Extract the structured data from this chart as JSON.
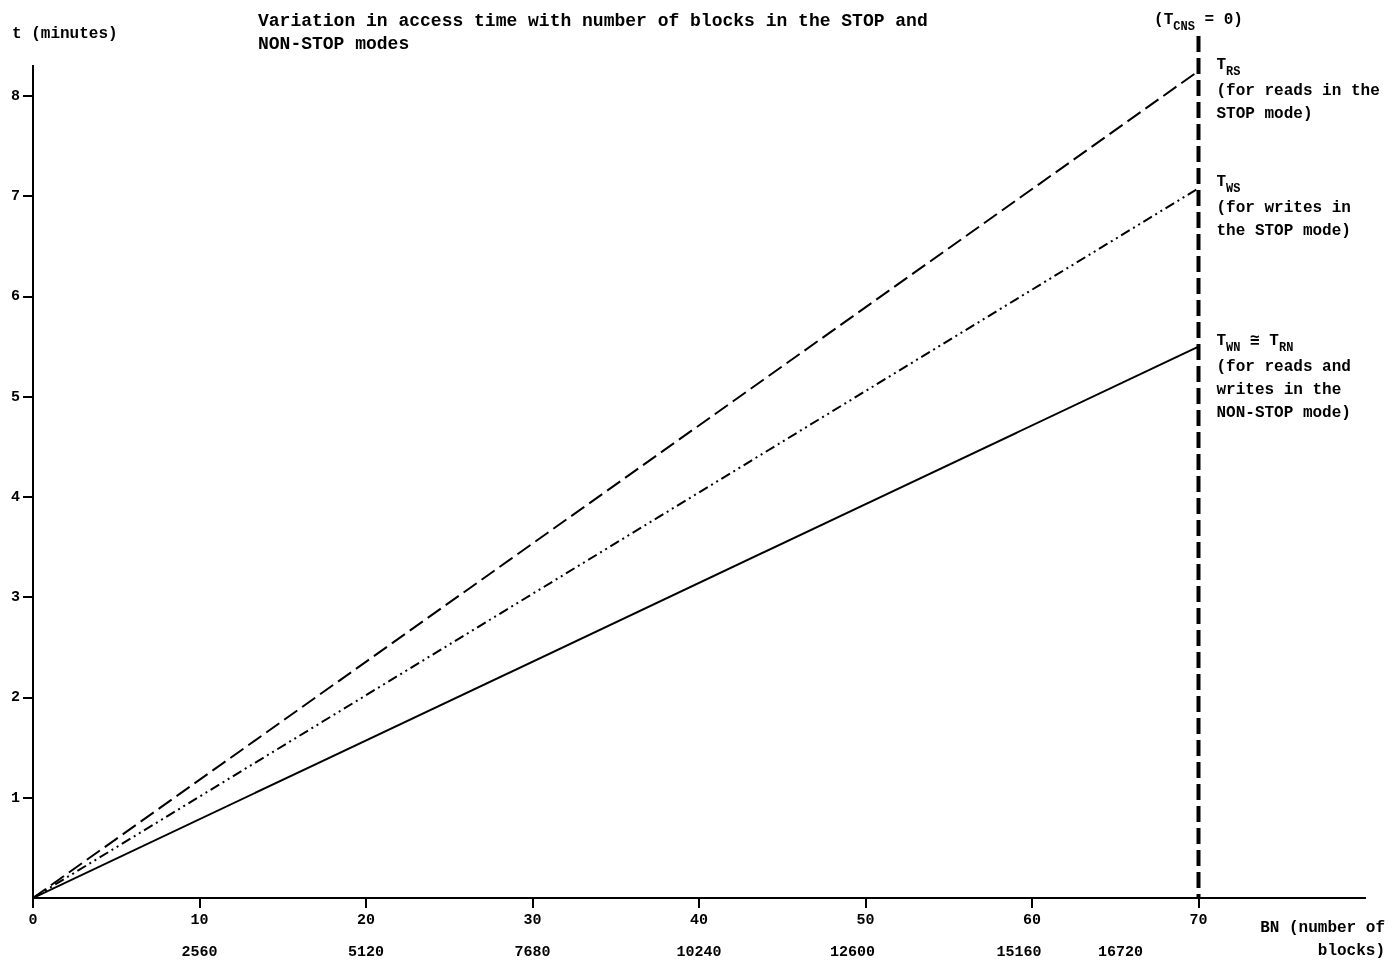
{
  "chart_data": {
    "type": "line",
    "title": "Variation in access time with number of blocks in the STOP and NON-STOP modes",
    "xlabel": "BN (number of blocks)",
    "ylabel": "t (minutes)",
    "xlim": [
      0,
      80
    ],
    "xticks": [
      0,
      10,
      20,
      30,
      40,
      50,
      60,
      70
    ],
    "x2lim": [
      0,
      20480
    ],
    "x2ticks": [
      2560,
      5120,
      7680,
      10240,
      12600,
      15160,
      16720
    ],
    "ylim": [
      0,
      8.3
    ],
    "yticks": [
      1,
      2,
      3,
      4,
      5,
      6,
      7,
      8
    ],
    "grid": false,
    "legend": false,
    "marker": "none",
    "x": [
      0,
      70
    ],
    "series": [
      {
        "name": "T$_{RS}$",
        "color": "#000000",
        "line_style": "dashed",
        "values": [
          0,
          8.25
        ]
      },
      {
        "name": "T$_{WS}$",
        "color": "#000000",
        "line_style": "dotted",
        "values": [
          0,
          7.08
        ]
      },
      {
        "name": "T$_{WN}$ ≅ T$_{RN}$",
        "color": "#000000",
        "line_style": "solid",
        "values": [
          0,
          5.5
        ]
      }
    ],
    "annotations": [
      "(for reads in the STOP mode)",
      "(for writes in the STOP mode)",
      "(for reads and writes in the NON-STOP mode)",
      "(T$_{CNS}$ = 0)"
    ],
    "ref_lines": [
      {
        "axis": "x",
        "value": 70,
        "line_style": "dashed",
        "color": "#000000"
      }
    ]
  }
}
